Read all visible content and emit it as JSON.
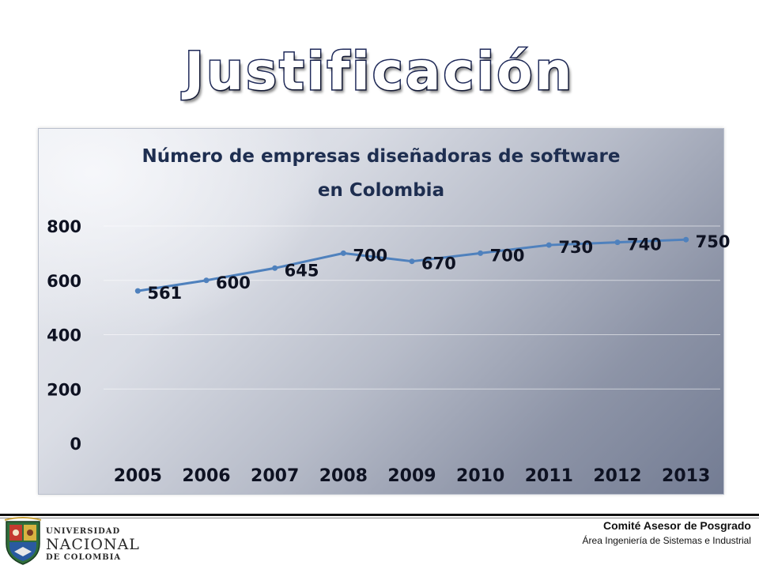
{
  "slide": {
    "title": "Justificación"
  },
  "chart_data": {
    "type": "line",
    "title_lines": [
      "Número de empresas diseñadoras de software",
      "en Colombia"
    ],
    "x": [
      "2005",
      "2006",
      "2007",
      "2008",
      "2009",
      "2010",
      "2011",
      "2012",
      "2013"
    ],
    "series": [
      {
        "values": [
          561,
          600,
          645,
          700,
          670,
          700,
          730,
          740,
          750
        ]
      }
    ],
    "yticks": [
      "0",
      "200",
      "400",
      "600",
      "800"
    ],
    "ylim": [
      0,
      800
    ],
    "grid": true,
    "data_labels": true,
    "legend": "none",
    "colors": {
      "line": "#4f81bd"
    }
  },
  "footer": {
    "university_line1": "UNIVERSIDAD",
    "university_line2": "NACIONAL",
    "university_line3": "DE COLOMBIA",
    "committee": "Comité Asesor de Posgrado",
    "area": "Área Ingeniería de Sistemas e Industrial"
  }
}
